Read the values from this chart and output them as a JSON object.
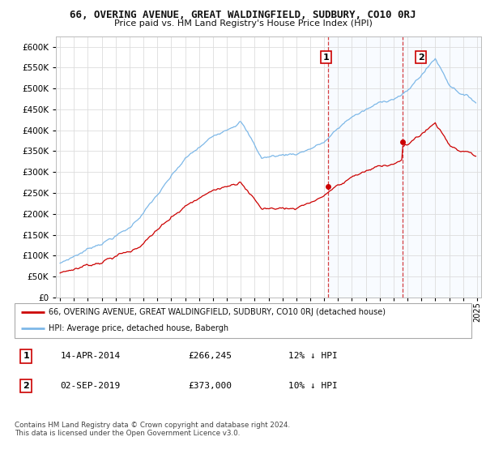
{
  "title": "66, OVERING AVENUE, GREAT WALDINGFIELD, SUDBURY, CO10 0RJ",
  "subtitle": "Price paid vs. HM Land Registry's House Price Index (HPI)",
  "yticks": [
    0,
    50000,
    100000,
    150000,
    200000,
    250000,
    300000,
    350000,
    400000,
    450000,
    500000,
    550000,
    600000
  ],
  "xlim_start": 1994.7,
  "xlim_end": 2025.3,
  "ylim": [
    0,
    625000
  ],
  "hpi_color": "#7db8e8",
  "price_color": "#cc0000",
  "shade_color": "#ddeeff",
  "sale1_year": 2014.29,
  "sale1_price": 266245,
  "sale2_year": 2019.67,
  "sale2_price": 373000,
  "legend_line1": "66, OVERING AVENUE, GREAT WALDINGFIELD, SUDBURY, CO10 0RJ (detached house)",
  "legend_line2": "HPI: Average price, detached house, Babergh",
  "table_row1_num": "1",
  "table_row1_date": "14-APR-2014",
  "table_row1_price": "£266,245",
  "table_row1_hpi": "12% ↓ HPI",
  "table_row2_num": "2",
  "table_row2_date": "02-SEP-2019",
  "table_row2_price": "£373,000",
  "table_row2_hpi": "10% ↓ HPI",
  "footer": "Contains HM Land Registry data © Crown copyright and database right 2024.\nThis data is licensed under the Open Government Licence v3.0.",
  "background_color": "#ffffff",
  "grid_color": "#dddddd"
}
